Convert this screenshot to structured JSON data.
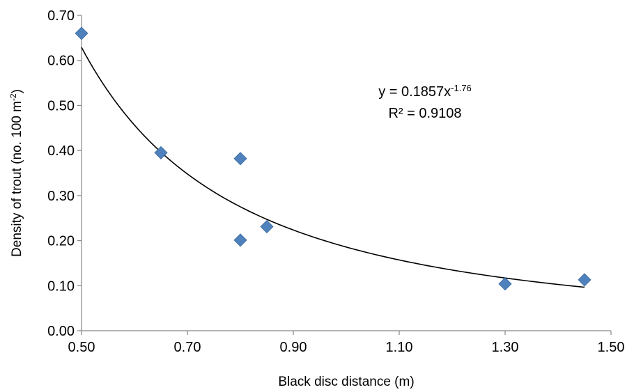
{
  "chart_data": {
    "type": "scatter",
    "xlabel": "Black disc distance (m)",
    "ylabel": "Density  of trout (no. 100 m",
    "ylabel_sup": "-2",
    "ylabel_end": ")",
    "xlim": [
      0.5,
      1.5
    ],
    "ylim": [
      0.0,
      0.7
    ],
    "x_ticks": [
      "0.50",
      "0.70",
      "0.90",
      "1.10",
      "1.30",
      "1.50"
    ],
    "y_ticks": [
      "0.00",
      "0.10",
      "0.20",
      "0.30",
      "0.40",
      "0.50",
      "0.60",
      "0.70"
    ],
    "grid": false,
    "marker_color": "#4F81BD",
    "trendline_color": "#000000",
    "points": [
      {
        "x": 0.5,
        "y": 0.66
      },
      {
        "x": 0.65,
        "y": 0.395
      },
      {
        "x": 0.8,
        "y": 0.382
      },
      {
        "x": 0.8,
        "y": 0.201
      },
      {
        "x": 0.85,
        "y": 0.231
      },
      {
        "x": 1.3,
        "y": 0.104
      },
      {
        "x": 1.45,
        "y": 0.113
      }
    ],
    "trendline": {
      "type": "power",
      "a": 0.1857,
      "b": -1.76,
      "x_range": [
        0.5,
        1.45
      ]
    },
    "equation": {
      "line1": "y = 0.1857x",
      "line1_sup": "-1.76",
      "line2": "R² = 0.9108"
    }
  }
}
